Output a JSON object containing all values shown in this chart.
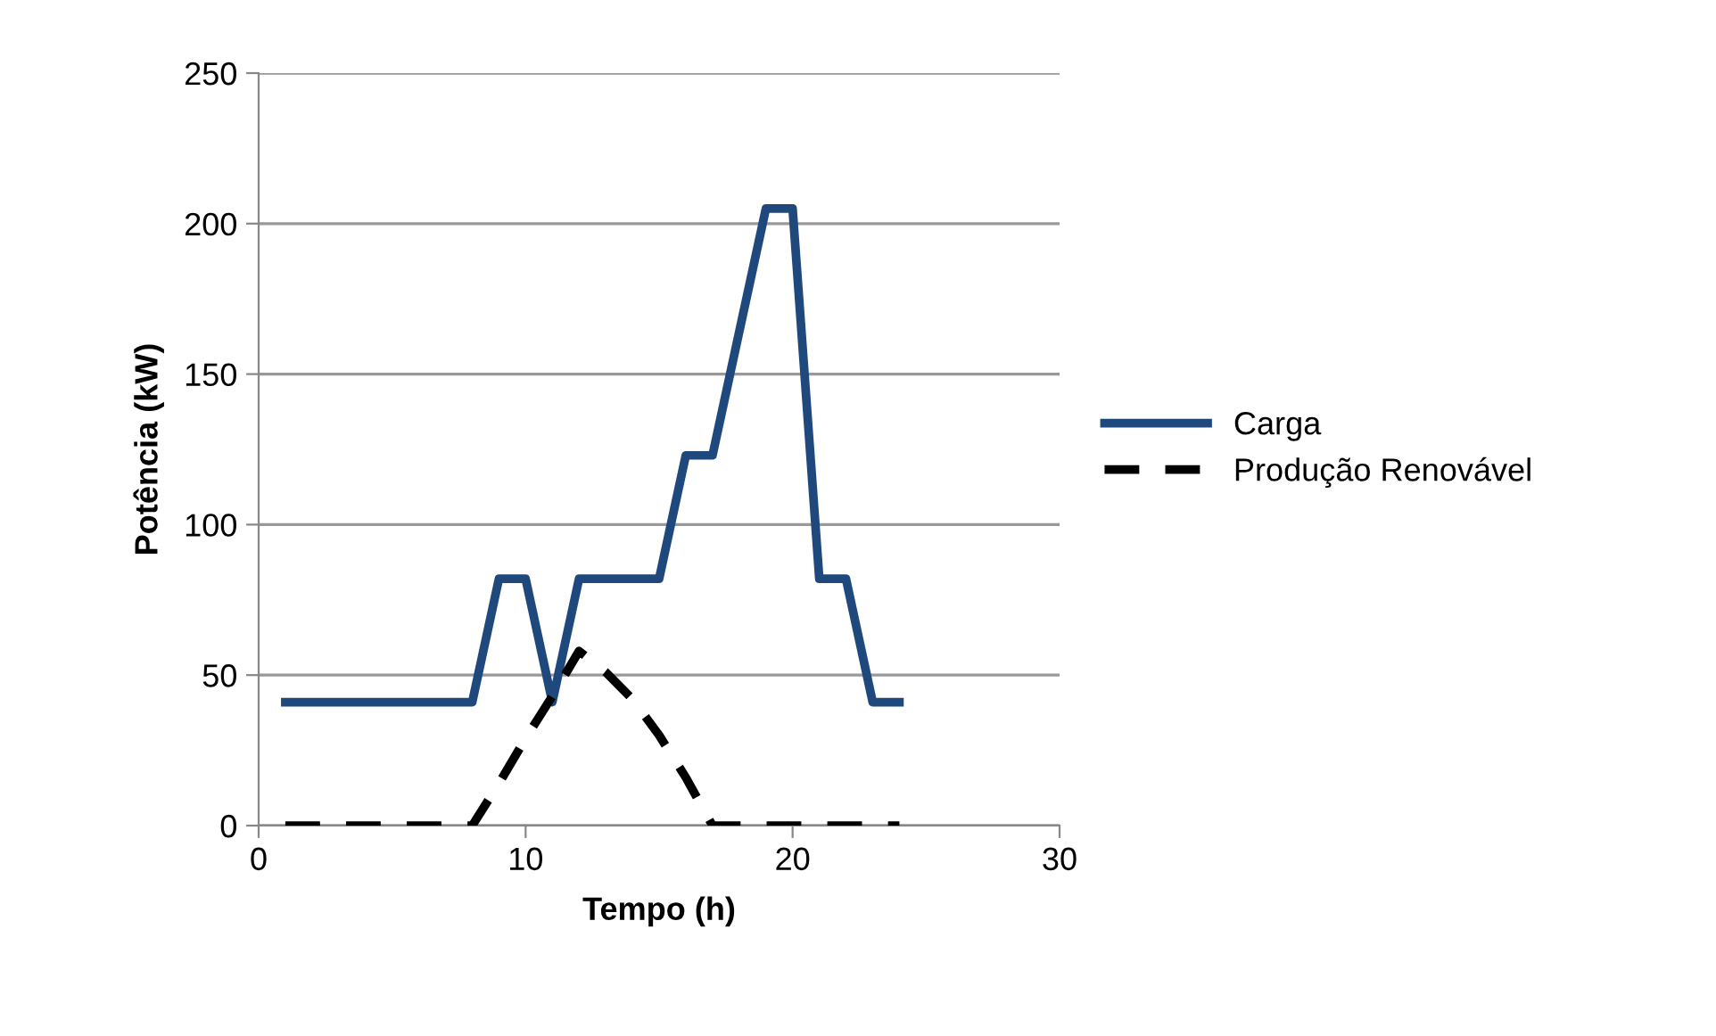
{
  "chart_data": {
    "type": "line",
    "xlabel": "Tempo (h)",
    "ylabel": "Potência (kW)",
    "x": [
      1,
      2,
      3,
      4,
      5,
      6,
      7,
      8,
      9,
      10,
      11,
      12,
      13,
      14,
      15,
      16,
      17,
      18,
      19,
      20,
      21,
      22,
      23,
      24
    ],
    "series": [
      {
        "name": "Carga",
        "color": "#1f497d",
        "line_style": "solid",
        "values": [
          41,
          41,
          41,
          41,
          41,
          41,
          41,
          41,
          82,
          82,
          41,
          82,
          82,
          82,
          82,
          123,
          123,
          164,
          205,
          205,
          82,
          82,
          41,
          41
        ]
      },
      {
        "name": "Produção Renovável",
        "color": "#000000",
        "line_style": "dashed",
        "values": [
          0,
          0,
          0,
          0,
          0,
          0,
          0,
          0,
          14,
          29,
          43,
          58,
          51,
          42,
          30,
          16,
          0,
          0,
          0,
          0,
          0,
          0,
          0,
          0
        ]
      }
    ],
    "xlim": [
      0,
      30
    ],
    "xticks": [
      0,
      10,
      20,
      30
    ],
    "ylim": [
      0,
      250
    ],
    "yticks": [
      0,
      50,
      100,
      150,
      200,
      250
    ],
    "grid": "y",
    "legend": "right",
    "marker": "none"
  }
}
